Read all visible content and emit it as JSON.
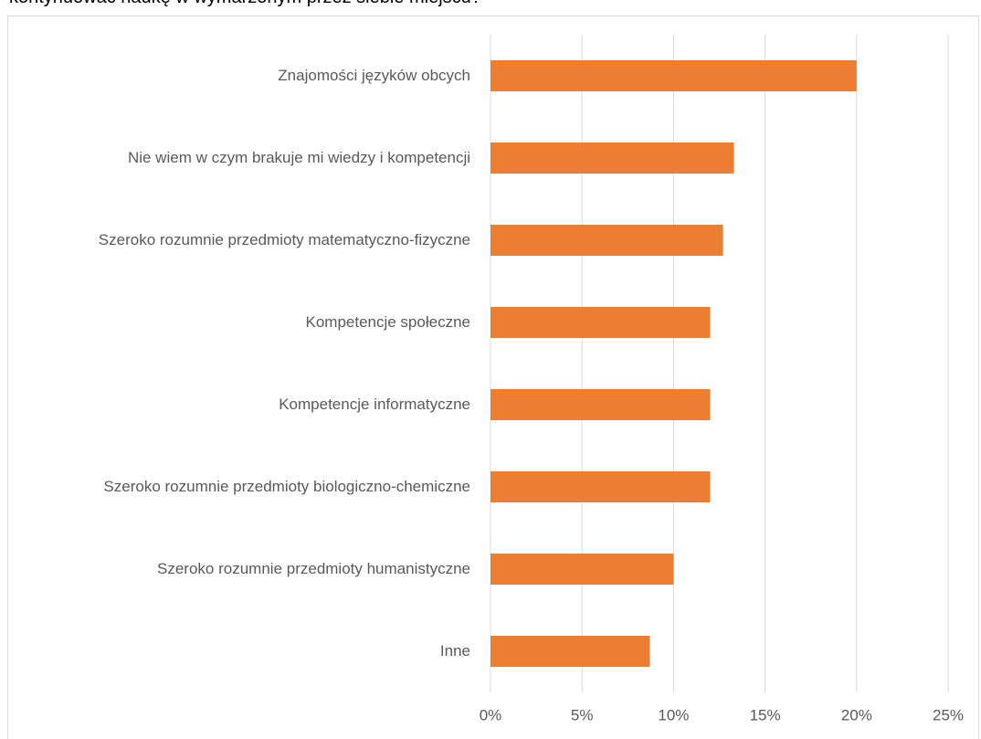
{
  "chart_data": {
    "type": "bar",
    "orientation": "horizontal",
    "title": "kontynuować naukę w wymarzonym przez siebie miejscu?",
    "categories": [
      "Znajomości języków obcych",
      "Nie wiem w czym brakuje mi wiedzy i kompetencji",
      "Szeroko rozumnie przedmioty matematyczno-fizyczne",
      "Kompetencje społeczne",
      "Kompetencje informatyczne",
      "Szeroko rozumnie przedmioty biologiczno-chemiczne",
      "Szeroko rozumnie przedmioty humanistyczne",
      "Inne"
    ],
    "values": [
      20.0,
      13.3,
      12.7,
      12.0,
      12.0,
      12.0,
      10.0,
      8.7
    ],
    "color": "#ed7d31",
    "xlim": [
      0,
      25
    ],
    "xticks": [
      {
        "value": 0,
        "label": "0%"
      },
      {
        "value": 5,
        "label": "5%"
      },
      {
        "value": 10,
        "label": "10%"
      },
      {
        "value": 15,
        "label": "15%"
      },
      {
        "value": 20,
        "label": "20%"
      },
      {
        "value": 25,
        "label": "25%"
      }
    ],
    "grid": true
  }
}
